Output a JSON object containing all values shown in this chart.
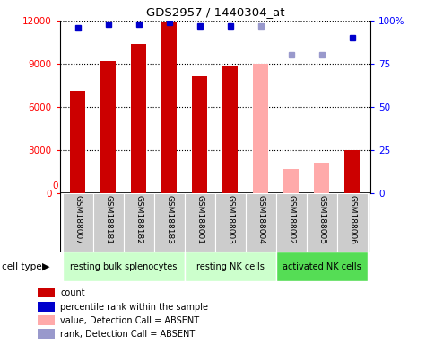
{
  "title": "GDS2957 / 1440304_at",
  "samples": [
    "GSM188007",
    "GSM188181",
    "GSM188182",
    "GSM188183",
    "GSM188001",
    "GSM188003",
    "GSM188004",
    "GSM188002",
    "GSM188005",
    "GSM188006"
  ],
  "count_values": [
    7100,
    9200,
    10400,
    11900,
    8100,
    8900,
    null,
    null,
    null,
    3000
  ],
  "count_absent_values": [
    null,
    null,
    null,
    null,
    null,
    null,
    9000,
    1700,
    2100,
    null
  ],
  "percentile_values": [
    96,
    98,
    98,
    99,
    97,
    97,
    null,
    null,
    null,
    90
  ],
  "percentile_absent_values": [
    null,
    null,
    null,
    null,
    null,
    null,
    97,
    80,
    80,
    null
  ],
  "group_labels": [
    "resting bulk splenocytes",
    "resting NK cells",
    "activated NK cells"
  ],
  "group_spans": [
    4,
    3,
    3
  ],
  "group_colors_light": "#ccffcc",
  "group_colors_bright": "#55dd55",
  "ylim_left": [
    0,
    12000
  ],
  "ylim_right": [
    0,
    100
  ],
  "yticks_left": [
    0,
    3000,
    6000,
    9000,
    12000
  ],
  "ytick_labels_left": [
    "0",
    "3000",
    "6000",
    "9000",
    "12000"
  ],
  "yticks_right": [
    0,
    25,
    50,
    75,
    100
  ],
  "ytick_labels_right": [
    "0",
    "25",
    "50",
    "75",
    "100%"
  ],
  "bar_color_present": "#cc0000",
  "bar_color_absent": "#ffaaaa",
  "dot_color_present": "#0000cc",
  "dot_color_absent": "#9999cc",
  "legend_items": [
    {
      "label": "count",
      "color": "#cc0000"
    },
    {
      "label": "percentile rank within the sample",
      "color": "#0000cc"
    },
    {
      "label": "value, Detection Call = ABSENT",
      "color": "#ffaaaa"
    },
    {
      "label": "rank, Detection Call = ABSENT",
      "color": "#9999cc"
    }
  ],
  "sample_bg_color": "#cccccc",
  "bar_width": 0.5
}
